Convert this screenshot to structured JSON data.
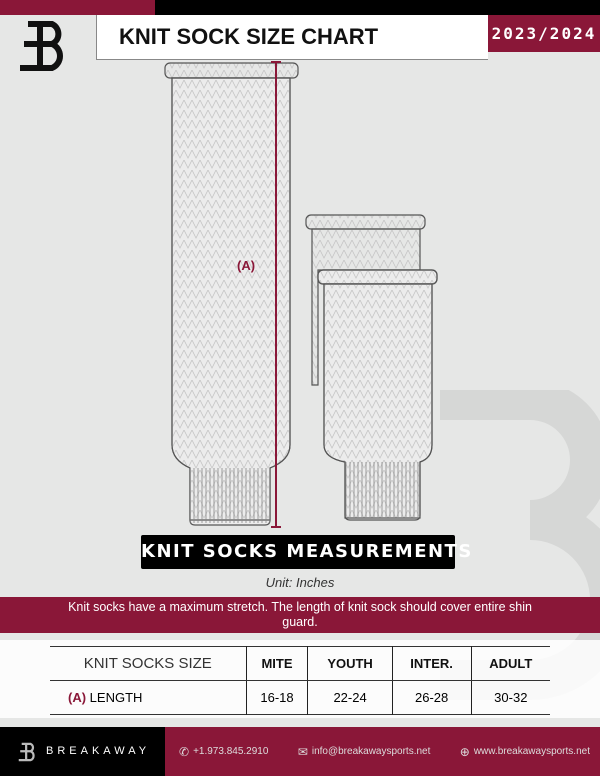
{
  "header": {
    "title": "KNIT SOCK SIZE CHART",
    "season": "2023/2024"
  },
  "diagram": {
    "measure_label": "(A)"
  },
  "section_label": "KNIT SOCKS MEASUREMENTS",
  "unit": "Unit: Inches",
  "note": "Knit socks have a maximum stretch. The length of knit sock should cover entire shin guard.",
  "table": {
    "headers": [
      "KNIT SOCKS SIZE",
      "MITE",
      "YOUTH",
      "INTER.",
      "ADULT"
    ],
    "rows": [
      {
        "marker": "(A)",
        "label": "LENGTH",
        "values": [
          "16-18",
          "22-24",
          "26-28",
          "30-32"
        ]
      }
    ]
  },
  "footer": {
    "brand": "BREAKAWAY",
    "phone": "+1.973.845.2910",
    "email": "info@breakawaysports.net",
    "website": "www.breakawaysports.net"
  },
  "colors": {
    "brand": "#8a1738",
    "dark": "#000000",
    "background": "#e6e7e6"
  }
}
